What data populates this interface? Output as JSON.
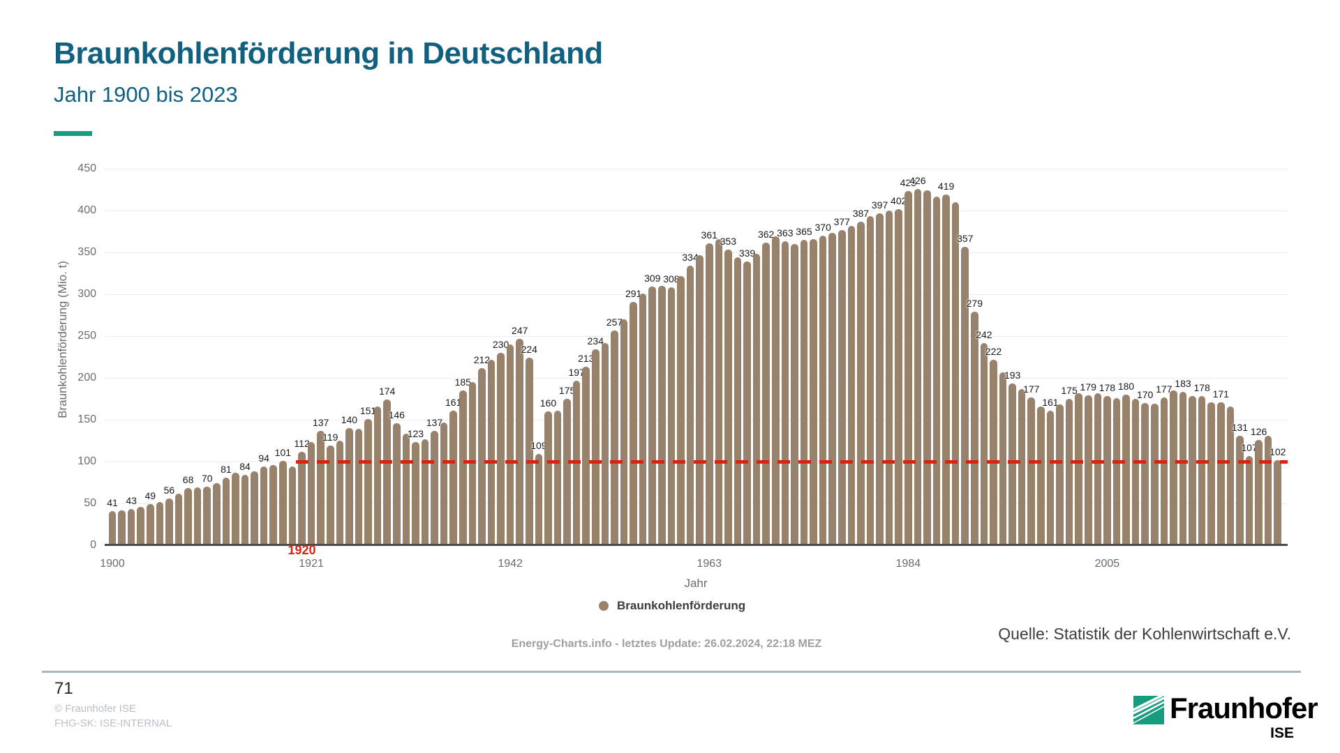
{
  "slide": {
    "title": "Braunkohlenförderung in Deutschland",
    "subtitle": "Jahr 1900 bis 2023",
    "page_number": "71",
    "copyright_line1": "© Fraunhofer ISE",
    "copyright_line2": "FHG-SK: ISE-INTERNAL",
    "source": "Quelle: Statistik der Kohlenwirtschaft e.V.",
    "logo_word": "Fraunhofer",
    "logo_sub": "ISE"
  },
  "colors": {
    "petrol": "#11607F",
    "green": "#179C7D",
    "bar": "#98826C",
    "red": "#D8230F"
  },
  "chart_data": {
    "type": "bar",
    "title": "",
    "xlabel": "Jahr",
    "ylabel": "Braunkohlenförderung (Mio. t)",
    "ylim": [
      0,
      450
    ],
    "y_tick_step": 50,
    "grid": true,
    "legend_position": "bottom",
    "x_ticks": [
      "1900",
      "1921",
      "1942",
      "1963",
      "1984",
      "2005"
    ],
    "footer": "Energy-Charts.info - letztes Update: 26.02.2024, 22:18 MEZ",
    "annotations": {
      "highlight_year": "1920",
      "reference_line": {
        "value": 100,
        "from_year": 1920,
        "style": "dashed"
      }
    },
    "series": [
      {
        "name": "Braunkohlenförderung",
        "year_start": 1900,
        "values": [
          41,
          42,
          43,
          46,
          49,
          52,
          56,
          62,
          68,
          69,
          70,
          74,
          81,
          87,
          84,
          88,
          94,
          96,
          101,
          94,
          112,
          123,
          137,
          119,
          125,
          140,
          139,
          151,
          166,
          174,
          146,
          133,
          123,
          127,
          137,
          147,
          161,
          185,
          195,
          212,
          222,
          230,
          240,
          247,
          224,
          109,
          160,
          161,
          175,
          197,
          213,
          234,
          242,
          257,
          270,
          291,
          301,
          309,
          310,
          308,
          322,
          334,
          347,
          361,
          366,
          353,
          344,
          339,
          348,
          362,
          369,
          363,
          360,
          365,
          366,
          370,
          373,
          377,
          382,
          387,
          393,
          397,
          400,
          402,
          423,
          426,
          424,
          417,
          419,
          410,
          357,
          279,
          242,
          222,
          207,
          193,
          187,
          177,
          166,
          161,
          168,
          175,
          182,
          179,
          182,
          178,
          176,
          180,
          175,
          170,
          169,
          177,
          185,
          183,
          178,
          178,
          171,
          171,
          166,
          131,
          107,
          126,
          131,
          102
        ],
        "labeled_years": [
          1900,
          1902,
          1904,
          1906,
          1908,
          1910,
          1912,
          1914,
          1916,
          1918,
          1920,
          1922,
          1923,
          1925,
          1927,
          1929,
          1930,
          1932,
          1934,
          1936,
          1937,
          1939,
          1941,
          1943,
          1944,
          1945,
          1946,
          1948,
          1949,
          1950,
          1951,
          1953,
          1955,
          1957,
          1959,
          1961,
          1963,
          1965,
          1967,
          1969,
          1971,
          1973,
          1975,
          1977,
          1979,
          1981,
          1983,
          1984,
          1985,
          1988,
          1990,
          1991,
          1992,
          1993,
          1995,
          1997,
          1999,
          2001,
          2003,
          2005,
          2007,
          2009,
          2011,
          2013,
          2015,
          2017,
          2019,
          2020,
          2021,
          2023
        ]
      }
    ]
  }
}
